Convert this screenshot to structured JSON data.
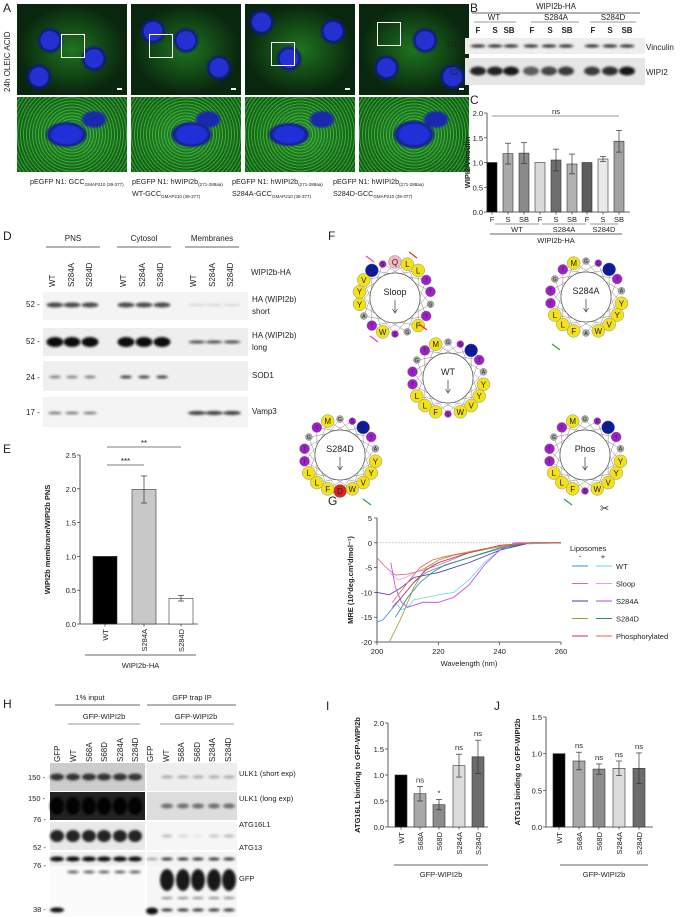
{
  "panel_labels": {
    "A": "A",
    "B": "B",
    "C": "C",
    "D": "D",
    "E": "E",
    "F": "F",
    "G": "G",
    "H": "H",
    "I": "I",
    "J": "J"
  },
  "A": {
    "side_label": "24h OLEIC ACID",
    "captions": [
      {
        "line1": "pEGFP N1: GCC",
        "sub1": "GMAP210 (39-377)",
        "line2": "",
        "sub2": ""
      },
      {
        "line1": "pEGFP N1: hWIPI2b",
        "sub1": "(271-288aa)",
        "line2": "WT-GCC",
        "sub2": "GMAP210 (39-377)"
      },
      {
        "line1": "pEGFP N1: hWIPI2b",
        "sub1": "(271-288aa)",
        "line2": "S284A-GCC",
        "sub2": "GMAP210 (39-377)"
      },
      {
        "line1": "pEGFP N1: hWIPI2b",
        "sub1": "(271-288aa)",
        "line2": "S284D-GCC",
        "sub2": "GMAP210 (39-377)"
      }
    ]
  },
  "B": {
    "title": "WIPI2b-HA",
    "groups": [
      "WT",
      "S284A",
      "S284D"
    ],
    "lanes": [
      "F",
      "S",
      "SB",
      "F",
      "S",
      "SB",
      "F",
      "S",
      "SB"
    ],
    "mw": [
      "150",
      "52"
    ],
    "blots": [
      "Vinculin",
      "WIPI2"
    ]
  },
  "D": {
    "fractions": [
      "PNS",
      "Cytosol",
      "Membranes"
    ],
    "lanes": [
      "WT",
      "S284A",
      "S284D",
      "WT",
      "S284A",
      "S284D",
      "WT",
      "S284A",
      "S284D"
    ],
    "construct": "WIPI2b-HA",
    "mw": [
      "52 -",
      "52 -",
      "24 -",
      "17 -"
    ],
    "blots": [
      {
        "line1": "HA (WIPI2b)",
        "line2": "short"
      },
      {
        "line1": "HA (WIPI2b)",
        "line2": "long"
      },
      {
        "line1": "SOD1",
        "line2": ""
      },
      {
        "line1": "Vamp3",
        "line2": ""
      }
    ]
  },
  "F": {
    "wheels": [
      {
        "name": "Sloop",
        "residues": [
          "Q",
          "L",
          "L",
          "T",
          "T",
          "G",
          "T",
          "F",
          "G",
          "S",
          "W",
          "T",
          "A",
          "Y",
          "Y",
          "V",
          "K",
          "S"
        ]
      },
      {
        "name": "S284A",
        "residues": [
          "G",
          "S",
          "K",
          "T",
          "A",
          "Y",
          "Y",
          "V",
          "W",
          "A",
          "F",
          "L",
          "L",
          "T",
          "T",
          "G",
          "T",
          "M"
        ]
      },
      {
        "name": "WT",
        "residues": [
          "G",
          "S",
          "K",
          "T",
          "A",
          "Y",
          "Y",
          "V",
          "W",
          "S",
          "F",
          "L",
          "L",
          "T",
          "T",
          "G",
          "T",
          "M"
        ]
      },
      {
        "name": "S284D",
        "residues": [
          "G",
          "S",
          "K",
          "T",
          "A",
          "Y",
          "Y",
          "V",
          "W",
          "D",
          "F",
          "L",
          "L",
          "T",
          "T",
          "G",
          "T",
          "M"
        ]
      },
      {
        "name": "Phos",
        "residues": [
          "G",
          "S",
          "K",
          "T",
          "A",
          "Y",
          "Y",
          "V",
          "W",
          "S",
          "F",
          "L",
          "L",
          "T",
          "T",
          "G",
          "T",
          "M"
        ]
      }
    ],
    "residue_colors": {
      "hydrophobic": "#f3e21a",
      "polar": "#a020c8",
      "basic": "#0a1aa8",
      "small": "#a8a8a8",
      "amide": "#f4b8c4",
      "acidic": "#e02020"
    }
  },
  "H": {
    "headers": [
      "1% input",
      "GFP trap IP"
    ],
    "subheaders": [
      "GFP-WIPI2b",
      "GFP-WIPI2b"
    ],
    "lanes": [
      "GFP",
      "WT",
      "S68A",
      "S68D",
      "S284A",
      "S284D",
      "GFP",
      "WT",
      "S68A",
      "S68D",
      "S284A",
      "S284D"
    ],
    "mw": [
      "150 -",
      "150 -",
      "76 -",
      "52 -",
      "76 -",
      "38 -"
    ],
    "blots": [
      "ULK1 (short exp)",
      "ULK1 (long exp)",
      "ATG16L1",
      "ATG13",
      "GFP"
    ]
  },
  "chart_data": [
    {
      "panel": "C",
      "type": "bar",
      "ylabel": "WIPI2/Vinculin",
      "ylim": [
        0,
        2.0
      ],
      "yticks": [
        "0.0",
        "0.5",
        "1.0",
        "1.5",
        "2.0"
      ],
      "categories": [
        "F",
        "S",
        "SB",
        "F",
        "S",
        "SB",
        "F",
        "S",
        "SB"
      ],
      "groups": [
        "WT",
        "S284A",
        "S284D"
      ],
      "group_label": "WIPI2b-HA",
      "values": [
        1.0,
        1.18,
        1.19,
        1.0,
        1.05,
        0.97,
        1.0,
        1.07,
        1.43
      ],
      "errors": [
        0,
        0.21,
        0.21,
        0,
        0.22,
        0.2,
        0,
        0.05,
        0.22
      ],
      "colors": [
        "#000000",
        "#a9a9a9",
        "#8a8a8a",
        "#dadada",
        "#6e6e6e",
        "#b2b2b2",
        "#5e5e5e",
        "#e9e9e9",
        "#a2a2a2"
      ],
      "annotations": [
        {
          "text": "ns",
          "from": 0,
          "to": 8
        }
      ]
    },
    {
      "panel": "E",
      "type": "bar",
      "ylabel": "WIPI2b membrane/WIPI2b PNS",
      "ylim": [
        0,
        2.5
      ],
      "yticks": [
        "0.0",
        "0.5",
        "1.0",
        "1.5",
        "2.0",
        "2.5"
      ],
      "categories": [
        "WT",
        "S284A",
        "S284D"
      ],
      "group_label": "WIPI2b-HA",
      "values": [
        1.0,
        1.99,
        0.38
      ],
      "errors": [
        0,
        0.2,
        0.04
      ],
      "colors": [
        "#000000",
        "#c8c8c8",
        "#ffffff"
      ],
      "annotations": [
        {
          "text": "***",
          "from": 0,
          "to": 1
        },
        {
          "text": "**",
          "from": 0,
          "to": 2
        }
      ]
    },
    {
      "panel": "G",
      "type": "line",
      "xlabel": "Wavelength (nm)",
      "ylabel": "MRE (10³deg.cm²dmol⁻¹)",
      "xlim": [
        200,
        260
      ],
      "ylim": [
        -20,
        5
      ],
      "xticks": [
        "200",
        "220",
        "240",
        "260"
      ],
      "yticks": [
        "-20",
        "-15",
        "-10",
        "-5",
        "0",
        "5"
      ],
      "legend_title": "Liposomes",
      "legend_columns": [
        "-",
        "+"
      ],
      "legend_placement": "right",
      "series": [
        {
          "name": "WT",
          "liposomes": "-",
          "color": "#3a8fd6",
          "points": [
            [
              200,
              -16
            ],
            [
              202,
              -15.5
            ],
            [
              204,
              -14
            ],
            [
              206,
              -12.5
            ],
            [
              208,
              -11
            ],
            [
              212,
              -8
            ],
            [
              216,
              -6
            ],
            [
              220,
              -5
            ],
            [
              230,
              -3
            ],
            [
              240,
              -1.2
            ],
            [
              250,
              0
            ],
            [
              260,
              0
            ]
          ]
        },
        {
          "name": "WT",
          "liposomes": "+",
          "color": "#62d6e6",
          "points": [
            [
              206,
              -12
            ],
            [
              208,
              -13.5
            ],
            [
              210,
              -13
            ],
            [
              212,
              -11.5
            ],
            [
              216,
              -11
            ],
            [
              220,
              -10.5
            ],
            [
              225,
              -10
            ],
            [
              230,
              -7.5
            ],
            [
              235,
              -4
            ],
            [
              240,
              -1.5
            ],
            [
              245,
              -0.3
            ],
            [
              260,
              0
            ]
          ]
        },
        {
          "name": "Sloop",
          "liposomes": "-",
          "color": "#d86aa8",
          "points": [
            [
              200,
              -3
            ],
            [
              203,
              -5
            ],
            [
              206,
              -6.5
            ],
            [
              210,
              -6.3
            ],
            [
              215,
              -5.5
            ],
            [
              220,
              -4.5
            ],
            [
              230,
              -2
            ],
            [
              240,
              -0.6
            ],
            [
              250,
              0
            ],
            [
              260,
              0
            ]
          ]
        },
        {
          "name": "Sloop",
          "liposomes": "+",
          "color": "#f39ae8",
          "points": [
            [
              204,
              -6
            ],
            [
              207,
              -7.5
            ],
            [
              210,
              -6.8
            ],
            [
              214,
              -5.5
            ],
            [
              220,
              -4
            ],
            [
              230,
              -2
            ],
            [
              240,
              -0.7
            ],
            [
              250,
              0
            ],
            [
              260,
              0
            ]
          ]
        },
        {
          "name": "S284A",
          "liposomes": "-",
          "color": "#4a3a9c",
          "points": [
            [
              200,
              -10
            ],
            [
              204,
              -10.5
            ],
            [
              208,
              -9
            ],
            [
              212,
              -7
            ],
            [
              216,
              -6.5
            ],
            [
              220,
              -6
            ],
            [
              230,
              -4
            ],
            [
              240,
              -1.5
            ],
            [
              250,
              0
            ],
            [
              260,
              0
            ]
          ]
        },
        {
          "name": "S284A",
          "liposomes": "+",
          "color": "#b444e0",
          "points": [
            [
              204.5,
              -4
            ],
            [
              206,
              -9
            ],
            [
              208,
              -12
            ],
            [
              210,
              -13
            ],
            [
              215,
              -12
            ],
            [
              220,
              -12
            ],
            [
              225,
              -11
            ],
            [
              230,
              -8.5
            ],
            [
              235,
              -4.5
            ],
            [
              240,
              -1.5
            ],
            [
              245,
              0
            ],
            [
              260,
              0
            ]
          ]
        },
        {
          "name": "S284D",
          "liposomes": "-",
          "color": "#8ea42e",
          "points": [
            [
              204,
              -20
            ],
            [
              208,
              -15
            ],
            [
              212,
              -9
            ],
            [
              216,
              -5
            ],
            [
              220,
              -3.5
            ],
            [
              225,
              -2.5
            ],
            [
              230,
              -2
            ],
            [
              240,
              -0.8
            ],
            [
              250,
              0
            ],
            [
              260,
              0
            ]
          ]
        },
        {
          "name": "S284D",
          "liposomes": "+",
          "color": "#2a8a80",
          "points": [
            [
              206,
              -15
            ],
            [
              210,
              -11
            ],
            [
              214,
              -8
            ],
            [
              218,
              -6
            ],
            [
              222,
              -4.5
            ],
            [
              230,
              -3
            ],
            [
              240,
              -1
            ],
            [
              250,
              0
            ],
            [
              260,
              0
            ]
          ]
        },
        {
          "name": "Phosphorylated",
          "liposomes": "-",
          "color": "#d0305a",
          "points": [
            [
              205,
              -13
            ],
            [
              208,
              -11
            ],
            [
              212,
              -8
            ],
            [
              216,
              -5.5
            ],
            [
              220,
              -4
            ],
            [
              225,
              -3
            ],
            [
              230,
              -2
            ],
            [
              240,
              -0.5
            ],
            [
              250,
              0
            ],
            [
              260,
              0
            ]
          ]
        },
        {
          "name": "Phosphorylated",
          "liposomes": "+",
          "color": "#f26440",
          "points": [
            [
              205,
              -12
            ],
            [
              210,
              -8
            ],
            [
              214,
              -5
            ],
            [
              218,
              -3.5
            ],
            [
              222,
              -2.8
            ],
            [
              230,
              -1.8
            ],
            [
              240,
              -0.6
            ],
            [
              250,
              0
            ],
            [
              260,
              0
            ]
          ]
        }
      ]
    },
    {
      "panel": "I",
      "type": "bar",
      "ylabel": "ATG16L1 binding to GFP-WIPI2b",
      "ylim": [
        0,
        2.0
      ],
      "yticks": [
        "0.0",
        "0.5",
        "1.0",
        "1.5",
        "2.0"
      ],
      "categories": [
        "WT",
        "S68A",
        "S68D",
        "S284A",
        "S284D"
      ],
      "group_label": "GFP-WIPI2b",
      "values": [
        1.0,
        0.64,
        0.43,
        1.18,
        1.35
      ],
      "errors": [
        0,
        0.14,
        0.1,
        0.22,
        0.32
      ],
      "colors": [
        "#000000",
        "#a8a8a8",
        "#8c8c8c",
        "#dcdcdc",
        "#6c6c6c"
      ],
      "annotations": [
        "",
        "ns",
        "*",
        "ns",
        "ns"
      ]
    },
    {
      "panel": "J",
      "type": "bar",
      "ylabel": "ATG13 binding to GFP-WIPI2b",
      "ylim": [
        0,
        1.5
      ],
      "yticks": [
        "0.0",
        "0.5",
        "1.0",
        "1.5"
      ],
      "categories": [
        "WT",
        "S68A",
        "S68D",
        "S284A",
        "S284D"
      ],
      "group_label": "GFP-WIPI2b",
      "values": [
        1.0,
        0.9,
        0.79,
        0.8,
        0.8
      ],
      "errors": [
        0,
        0.12,
        0.07,
        0.1,
        0.21
      ],
      "colors": [
        "#000000",
        "#a8a8a8",
        "#8c8c8c",
        "#dcdcdc",
        "#6c6c6c"
      ],
      "annotations": [
        "",
        "ns",
        "ns",
        "ns",
        "ns"
      ]
    }
  ]
}
